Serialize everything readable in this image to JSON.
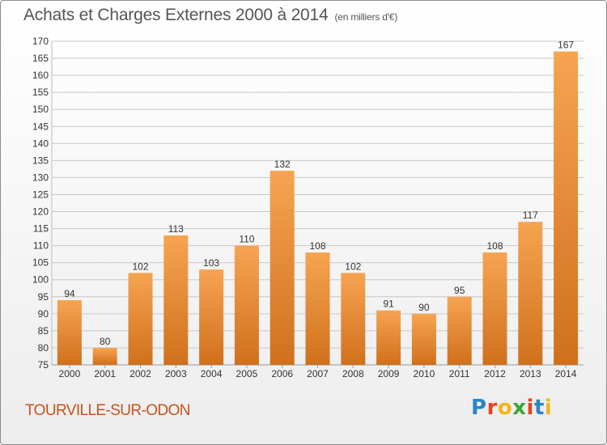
{
  "header": {
    "title": "Achats et Charges Externes 2000 à 2014",
    "subtitle": "(en milliers d'€)"
  },
  "footer": {
    "commune": "TOURVILLE-SUR-ODON",
    "logo_text": "Proxiti",
    "logo_colors": [
      "#2a84c6",
      "#e8431f",
      "#f2b51b",
      "#3aa537",
      "#e8431f",
      "#2a84c6",
      "#f2b51b"
    ]
  },
  "colors": {
    "bar_top": "#f6a452",
    "bar_bottom": "#d0701c",
    "grid": "#c8c8c8",
    "commune": "#c4531c"
  },
  "chart_data": {
    "type": "bar",
    "title": "Achats et Charges Externes 2000 à 2014",
    "subtitle": "(en milliers d'€)",
    "categories": [
      "2000",
      "2001",
      "2002",
      "2003",
      "2004",
      "2005",
      "2006",
      "2007",
      "2008",
      "2009",
      "2010",
      "2011",
      "2012",
      "2013",
      "2014"
    ],
    "values": [
      94,
      80,
      102,
      113,
      103,
      110,
      132,
      108,
      102,
      91,
      90,
      95,
      108,
      117,
      167
    ],
    "ylim": [
      75,
      170
    ],
    "ytick_step": 5,
    "grid": true,
    "data_labels": true
  }
}
